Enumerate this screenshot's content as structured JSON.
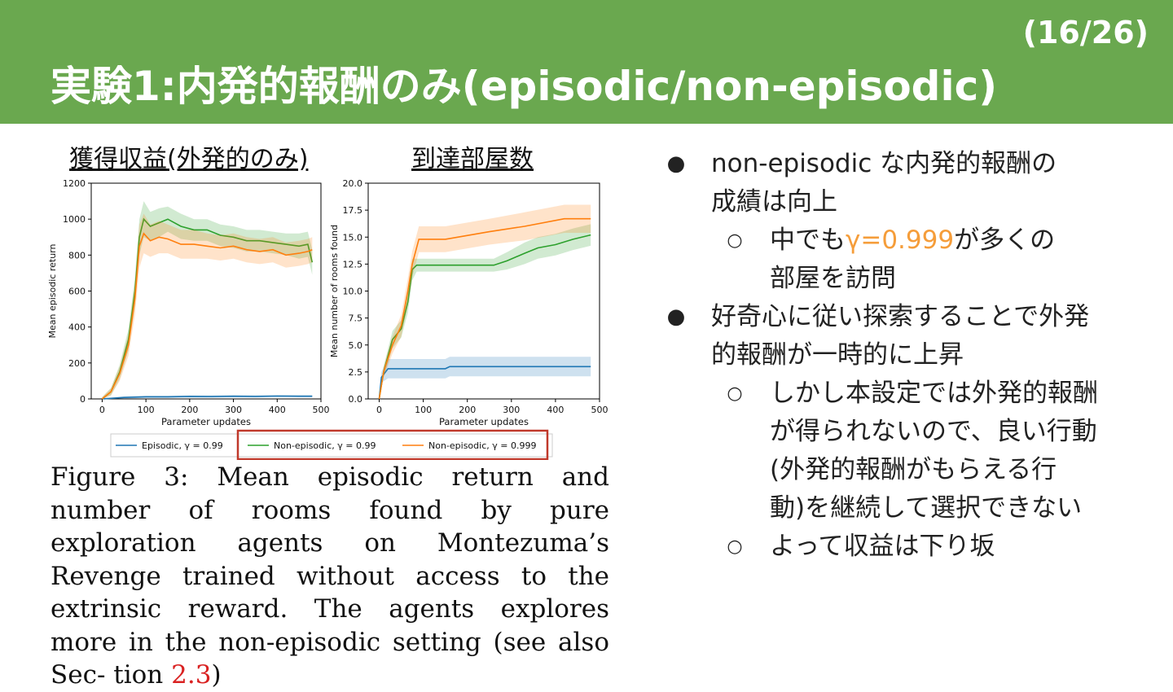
{
  "slide": {
    "page_number": "(16/26)",
    "title": "実験1:内発的報酬のみ(episodic/non-episodic)"
  },
  "charts_header": {
    "left_title": "獲得収益(外発的のみ)",
    "right_title": "到達部屋数"
  },
  "chart_data": [
    {
      "type": "line",
      "ylabel": "Mean episodic return",
      "xlabel": "Parameter updates",
      "xlim": [
        -25,
        500
      ],
      "ylim": [
        0,
        1200
      ],
      "xticks": [
        0,
        100,
        200,
        300,
        400,
        500
      ],
      "yticks": [
        0,
        200,
        400,
        600,
        800,
        1000,
        1200
      ],
      "ytick_labels": [
        "0",
        "200",
        "400",
        "600",
        "800",
        "1000",
        "1200"
      ],
      "grid": false,
      "series": [
        {
          "name": "Episodic, γ = 0.99",
          "color": "#1f77b4",
          "x": [
            0,
            20,
            50,
            100,
            150,
            200,
            250,
            300,
            350,
            400,
            450,
            480
          ],
          "y": [
            0,
            3,
            8,
            12,
            12,
            14,
            13,
            15,
            14,
            16,
            15,
            15
          ],
          "band": [
            5,
            5,
            6,
            6,
            6,
            6,
            6,
            6,
            6,
            6,
            6,
            6
          ]
        },
        {
          "name": "Non-episodic, γ = 0.99",
          "color": "#2ca02c",
          "x": [
            0,
            20,
            40,
            60,
            75,
            85,
            95,
            110,
            130,
            150,
            180,
            210,
            240,
            270,
            300,
            330,
            360,
            390,
            420,
            450,
            470,
            480
          ],
          "y": [
            0,
            40,
            150,
            330,
            600,
            900,
            1000,
            960,
            980,
            1000,
            960,
            940,
            940,
            910,
            900,
            880,
            880,
            870,
            860,
            850,
            860,
            760
          ],
          "band": [
            10,
            20,
            40,
            60,
            80,
            100,
            100,
            80,
            80,
            70,
            70,
            60,
            60,
            60,
            60,
            60,
            60,
            60,
            60,
            70,
            70,
            70
          ]
        },
        {
          "name": "Non-episodic, γ = 0.999",
          "color": "#ff7f0e",
          "x": [
            0,
            20,
            40,
            60,
            75,
            85,
            95,
            110,
            130,
            150,
            180,
            210,
            240,
            270,
            300,
            330,
            360,
            390,
            420,
            450,
            470,
            480
          ],
          "y": [
            0,
            40,
            140,
            300,
            560,
            850,
            920,
            880,
            900,
            890,
            860,
            860,
            850,
            840,
            850,
            830,
            820,
            830,
            800,
            810,
            820,
            830
          ],
          "band": [
            10,
            20,
            40,
            60,
            90,
            120,
            110,
            90,
            90,
            80,
            80,
            80,
            70,
            70,
            70,
            70,
            70,
            70,
            70,
            70,
            70,
            70
          ]
        }
      ]
    },
    {
      "type": "line",
      "ylabel": "Mean number of rooms found",
      "xlabel": "Parameter updates",
      "xlim": [
        -25,
        500
      ],
      "ylim": [
        0,
        20
      ],
      "xticks": [
        0,
        100,
        200,
        300,
        400,
        500
      ],
      "yticks": [
        0,
        2.5,
        5,
        7.5,
        10,
        12.5,
        15,
        17.5,
        20
      ],
      "ytick_labels": [
        "0.0",
        "2.5",
        "5.0",
        "7.5",
        "10.0",
        "12.5",
        "15.0",
        "17.5",
        "20.0"
      ],
      "grid": false,
      "series": [
        {
          "name": "Episodic, γ = 0.99",
          "color": "#1f77b4",
          "x": [
            0,
            5,
            20,
            150,
            160,
            480
          ],
          "y": [
            0,
            2,
            2.8,
            2.8,
            3.0,
            3.0
          ],
          "band": [
            0,
            0.5,
            0.9,
            0.9,
            0.9,
            0.9
          ]
        },
        {
          "name": "Non-episodic, γ = 0.99",
          "color": "#2ca02c",
          "x": [
            0,
            10,
            30,
            50,
            65,
            75,
            85,
            150,
            260,
            290,
            330,
            360,
            400,
            440,
            480
          ],
          "y": [
            0,
            2.5,
            5.5,
            6.5,
            9,
            12,
            12.4,
            12.4,
            12.4,
            12.8,
            13.5,
            14,
            14.3,
            14.8,
            15.2
          ],
          "band": [
            0,
            0.5,
            0.8,
            0.8,
            1.0,
            1.0,
            0.6,
            0.6,
            0.6,
            0.8,
            1.0,
            1.0,
            1.0,
            1.0,
            1.0
          ]
        },
        {
          "name": "Non-episodic, γ = 0.999",
          "color": "#ff7f0e",
          "x": [
            0,
            10,
            30,
            50,
            65,
            75,
            90,
            150,
            250,
            330,
            420,
            480
          ],
          "y": [
            0,
            2.5,
            5,
            6.8,
            10,
            12.5,
            14.8,
            14.8,
            15.5,
            16.0,
            16.7,
            16.7
          ],
          "band": [
            0,
            0.5,
            0.8,
            1.0,
            1.2,
            1.2,
            1.2,
            1.2,
            1.2,
            1.3,
            1.3,
            1.3
          ]
        }
      ]
    }
  ],
  "legend": [
    {
      "label": "Episodic, γ = 0.99",
      "color": "#1f77b4"
    },
    {
      "label": "Non-episodic, γ = 0.99",
      "color": "#2ca02c"
    },
    {
      "label": "Non-episodic, γ = 0.999",
      "color": "#ff7f0e"
    }
  ],
  "highlight_color": "#c0392b",
  "caption": {
    "text": "Figure 3: Mean episodic return and number of rooms found by pure exploration agents on Montezuma’s Revenge trained without access to the extrinsic reward. The agents explores more in the non-episodic setting (see also Sec- tion",
    "ref": "2.3",
    "close": ")"
  },
  "bullets": {
    "b1_line1": "non-episodic な内発的報酬の",
    "b1_line2": "成績は向上",
    "b1_sub1_pre": "中でも",
    "b1_sub1_gamma": "γ=0.999",
    "b1_sub1_post": "が多くの",
    "b1_sub1_line2": "部屋を訪問",
    "b2_line1": "好奇心に従い探索することで外発",
    "b2_line2": "的報酬が一時的に上昇",
    "b2_sub1_l1": "しかし本設定では外発的報酬",
    "b2_sub1_l2": "が得られないので、良い行動",
    "b2_sub1_l3": "(外発的報酬がもらえる行",
    "b2_sub1_l4": "動)を継続して選択できない",
    "b2_sub2": "よって収益は下り坂",
    "dot": "●",
    "circle": "○"
  }
}
